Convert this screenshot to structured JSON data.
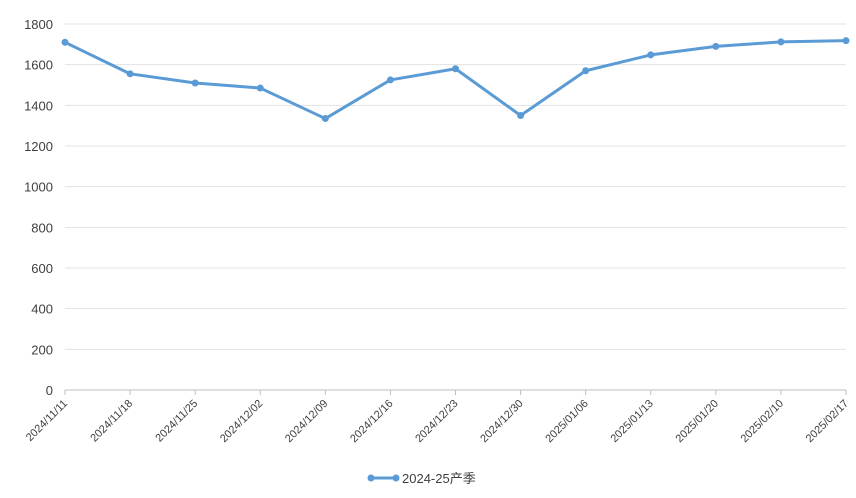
{
  "chart_data": {
    "type": "line",
    "x": [
      "2024/11/11",
      "2024/11/18",
      "2024/11/25",
      "2024/12/02",
      "2024/12/09",
      "2024/12/16",
      "2024/12/23",
      "2024/12/30",
      "2025/01/06",
      "2025/01/13",
      "2025/01/20",
      "2025/02/10",
      "2025/02/17"
    ],
    "series": [
      {
        "name": "2024-25产季",
        "values": [
          1710,
          1555,
          1510,
          1485,
          1335,
          1525,
          1580,
          1350,
          1570,
          1648,
          1690,
          1712,
          1718
        ]
      }
    ],
    "yticks": [
      0,
      200,
      400,
      600,
      800,
      1000,
      1200,
      1400,
      1600,
      1800
    ],
    "ylim": [
      0,
      1800
    ],
    "grid": true,
    "legend_position": "bottom",
    "colors": {
      "series": "#5b9bd5",
      "grid": "#e3e3e3",
      "axis": "#bfbfbf",
      "text": "#404040"
    }
  }
}
